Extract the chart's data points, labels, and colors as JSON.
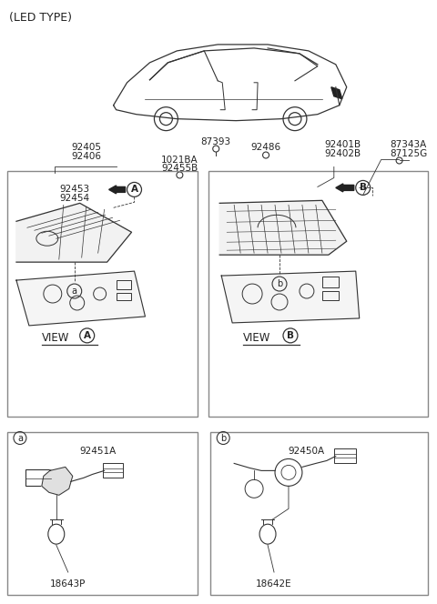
{
  "title": "(LED TYPE)",
  "bg_color": "#ffffff",
  "line_color": "#333333",
  "text_color": "#222222",
  "fig_width": 4.8,
  "fig_height": 6.64,
  "dpi": 100,
  "labels": {
    "led_type": "(LED TYPE)",
    "87393": "87393",
    "92405": "92405",
    "92406": "92406",
    "92453": "92453",
    "92454": "92454",
    "1021BA": "1021BA",
    "92455B": "92455B",
    "92486": "92486",
    "92401B": "92401B",
    "92402B": "92402B",
    "87343A": "87343A",
    "87125G": "87125G",
    "view_a_label": "VIEW",
    "view_b_label": "VIEW",
    "92451A": "92451A",
    "18643P": "18643P",
    "92450A": "92450A",
    "18642E": "18642E"
  }
}
